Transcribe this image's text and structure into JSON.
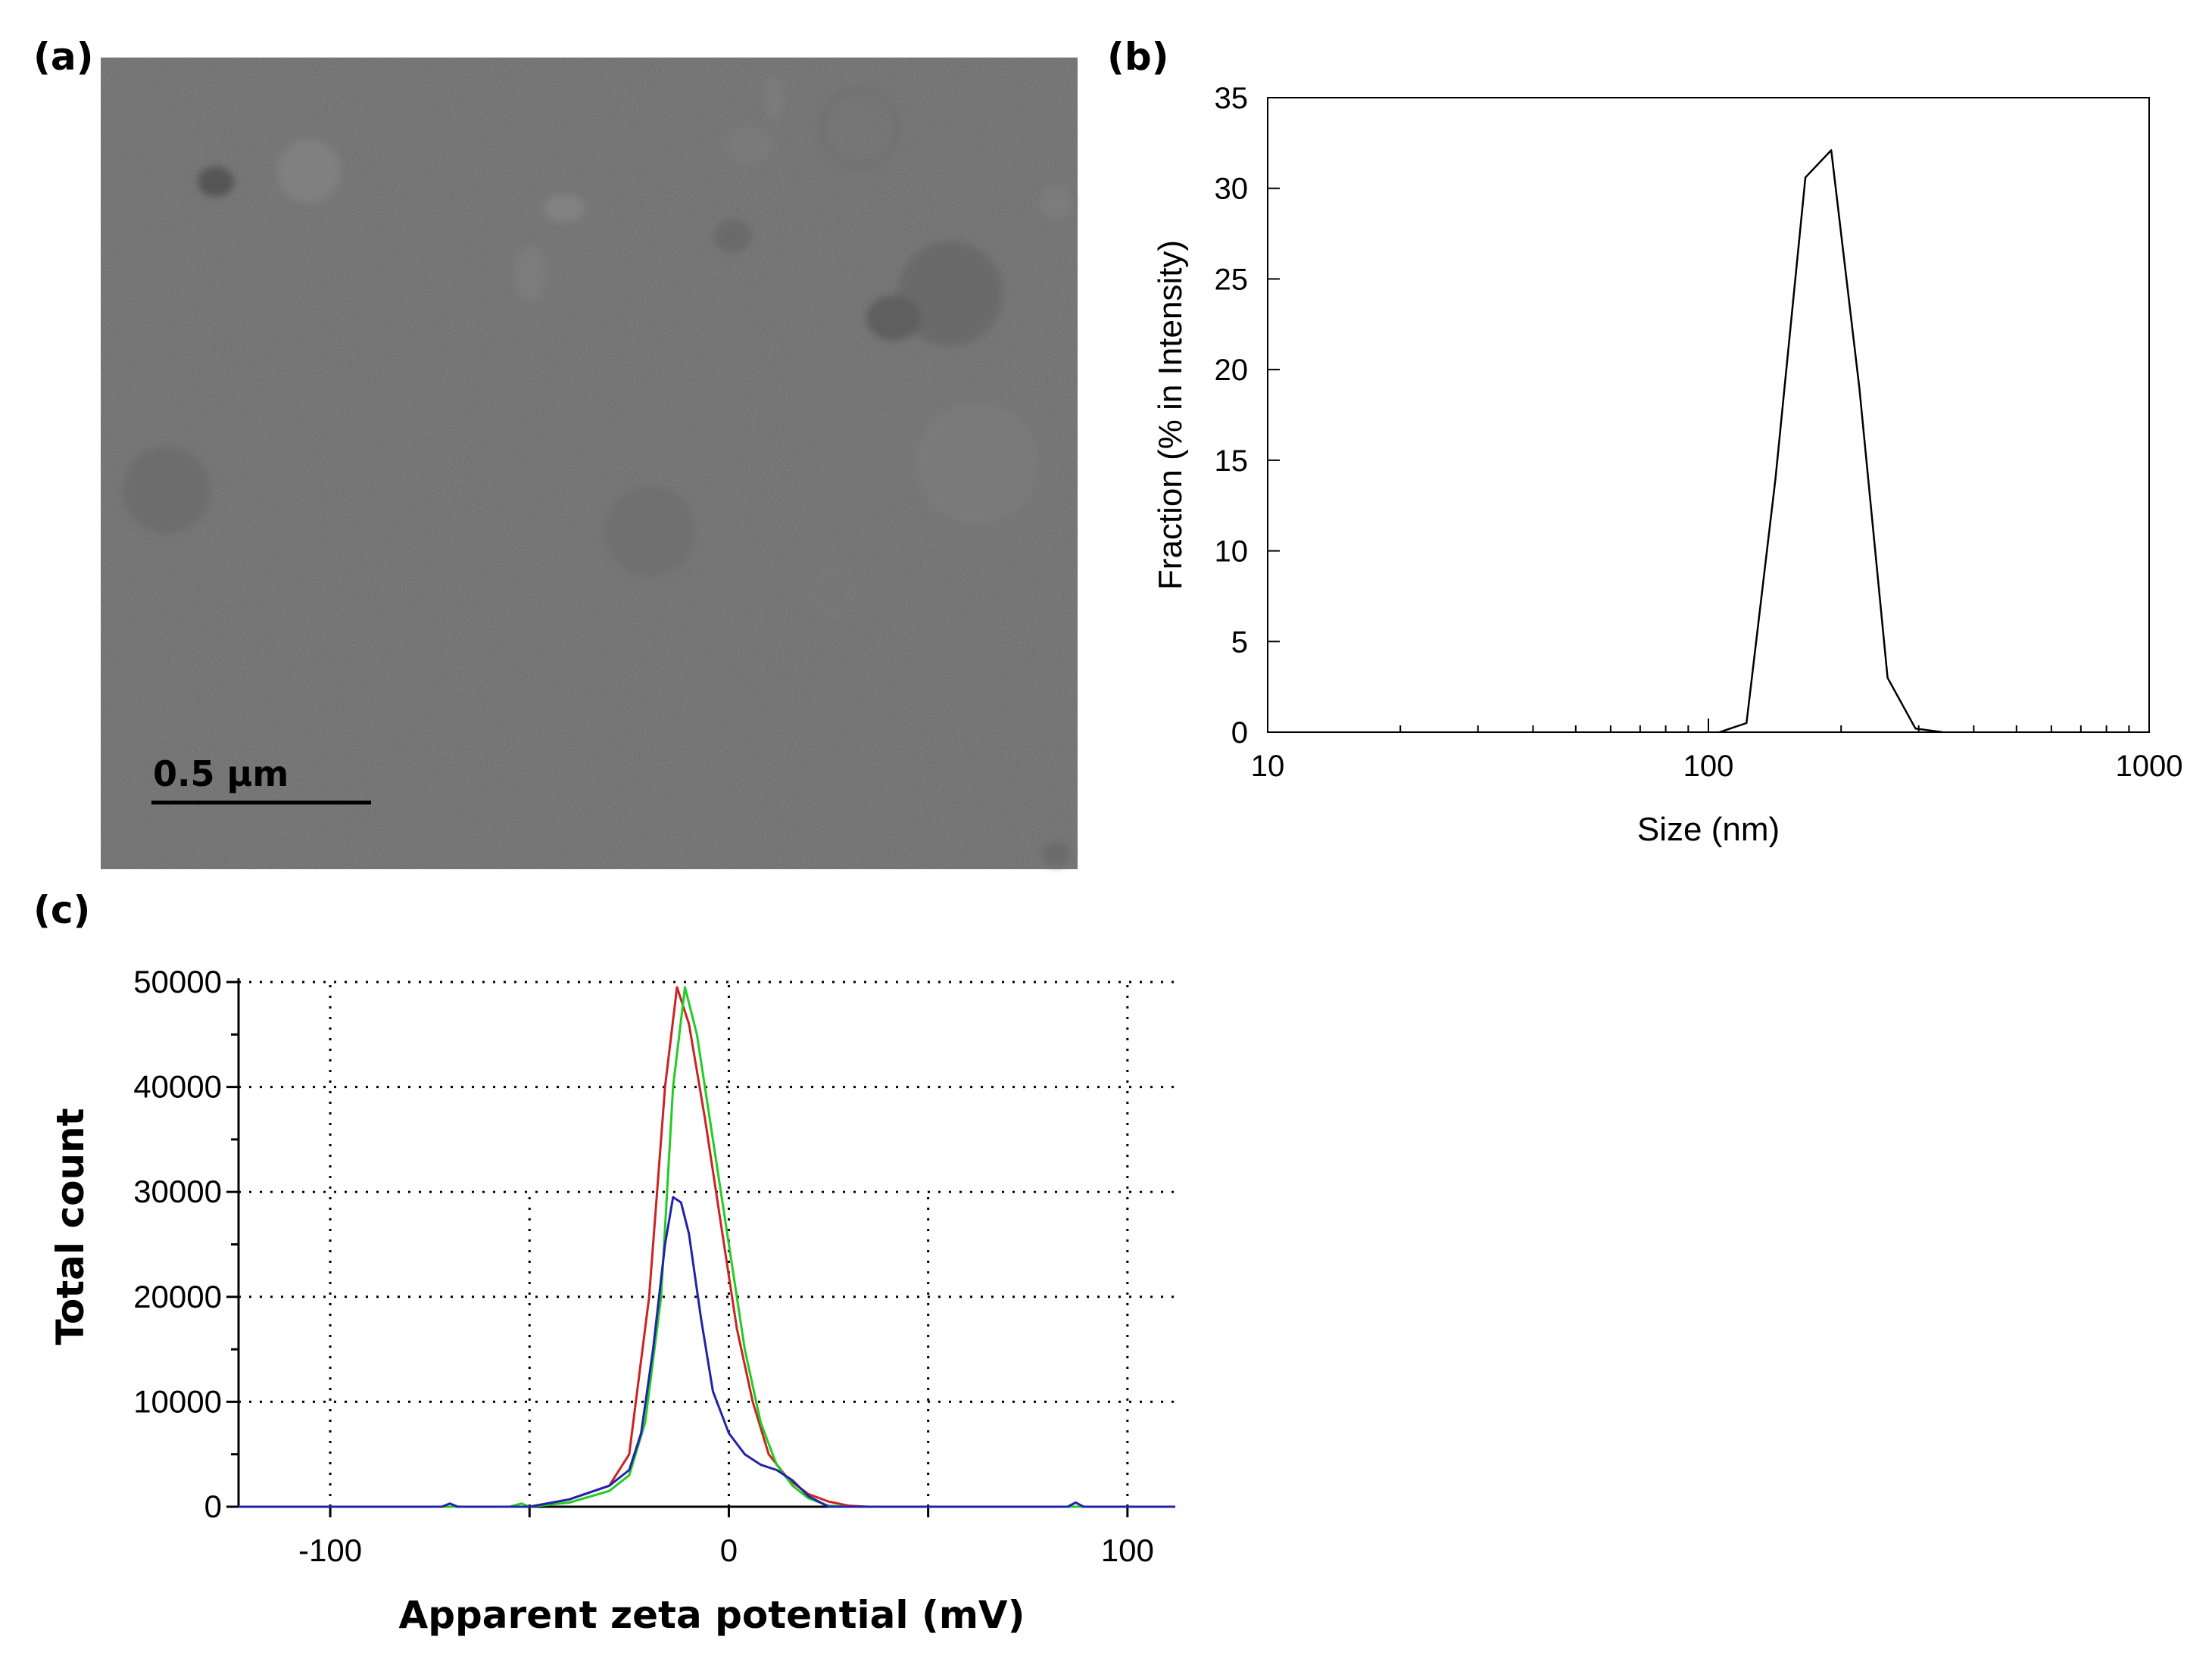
{
  "panels": {
    "a": "(a)",
    "b": "(b)",
    "c": "(c)"
  },
  "micrograph": {
    "scale_bar_label": "0.5 μm",
    "background_color": "#8f8f8f"
  },
  "chart_data": [
    {
      "type": "line",
      "panel": "b",
      "xlabel": "Size (nm)",
      "ylabel": "Fraction (% in Intensity)",
      "x_scale": "log",
      "xlim": [
        10,
        1000
      ],
      "ylim": [
        0,
        35
      ],
      "x_ticks": [
        10,
        100,
        1000
      ],
      "x_tick_labels": [
        "10",
        "100",
        "1000"
      ],
      "y_ticks": [
        0,
        5,
        10,
        15,
        20,
        25,
        30,
        35
      ],
      "y_tick_labels": [
        "0",
        "5",
        "10",
        "15",
        "20",
        "25",
        "30",
        "35"
      ],
      "grid": false,
      "series": [
        {
          "color": "#000000",
          "x": [
            106,
            122,
            142,
            166,
            190,
            220,
            255,
            295,
            340
          ],
          "y": [
            0,
            0.5,
            14,
            30.6,
            32.1,
            19,
            3,
            0.2,
            0
          ]
        }
      ]
    },
    {
      "type": "line",
      "panel": "c",
      "xlabel": "Apparent zeta potential (mV)",
      "ylabel": "Total count",
      "xlim": [
        -123,
        112
      ],
      "ylim": [
        0,
        50000
      ],
      "x_ticks": [
        -100,
        0,
        100
      ],
      "x_tick_labels": [
        "-100",
        "0",
        "100"
      ],
      "y_ticks": [
        0,
        10000,
        20000,
        30000,
        40000,
        50000
      ],
      "y_tick_labels": [
        "0",
        "10000",
        "20000",
        "30000",
        "40000",
        "50000"
      ],
      "grid": true,
      "series": [
        {
          "color": "#cc2222",
          "x": [
            -123,
            -70,
            -60,
            -50,
            -40,
            -30,
            -25,
            -20,
            -16,
            -13,
            -10,
            -6,
            -2,
            2,
            6,
            10,
            15,
            20,
            25,
            30,
            35,
            112
          ],
          "y": [
            0,
            0,
            0,
            0,
            700,
            2000,
            5000,
            20000,
            40000,
            49500,
            46000,
            37000,
            27000,
            17000,
            10000,
            5000,
            2600,
            1200,
            500,
            100,
            0,
            0
          ]
        },
        {
          "color": "#22cc22",
          "x": [
            -123,
            -55,
            -52,
            -50,
            -40,
            -30,
            -25,
            -21,
            -17,
            -14,
            -11,
            -8,
            -4,
            0,
            4,
            8,
            12,
            16,
            20,
            25,
            30,
            112
          ],
          "y": [
            0,
            0,
            300,
            0,
            400,
            1500,
            3000,
            8000,
            20000,
            40000,
            49500,
            45000,
            35000,
            25000,
            15000,
            8000,
            4000,
            2000,
            800,
            100,
            0,
            0
          ]
        },
        {
          "color": "#2222aa",
          "x": [
            -123,
            -72,
            -70,
            -68,
            -50,
            -40,
            -30,
            -25,
            -22,
            -19,
            -16,
            -14,
            -12,
            -10,
            -7,
            -4,
            0,
            4,
            8,
            12,
            16,
            20,
            25,
            85,
            87,
            89,
            112
          ],
          "y": [
            0,
            0,
            300,
            0,
            0,
            700,
            2000,
            3500,
            7000,
            15000,
            25000,
            29500,
            29000,
            26000,
            18000,
            11000,
            7000,
            5000,
            4000,
            3500,
            2500,
            1000,
            0,
            0,
            400,
            0,
            0
          ]
        }
      ]
    }
  ]
}
